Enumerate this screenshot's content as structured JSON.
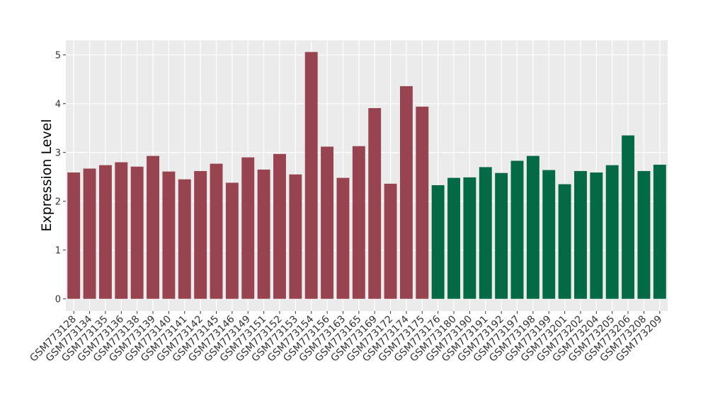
{
  "chart_data": {
    "type": "bar",
    "y_label": "Expression Level",
    "categories": [
      "GSM773128",
      "GSM773134",
      "GSM773135",
      "GSM773136",
      "GSM773138",
      "GSM773139",
      "GSM773140",
      "GSM773141",
      "GSM773142",
      "GSM773145",
      "GSM773146",
      "GSM773149",
      "GSM773151",
      "GSM773152",
      "GSM773153",
      "GSM773154",
      "GSM773156",
      "GSM773163",
      "GSM773165",
      "GSM773169",
      "GSM773172",
      "GSM773174",
      "GSM773175",
      "GSM773176",
      "GSM773180",
      "GSM773190",
      "GSM773191",
      "GSM773192",
      "GSM773197",
      "GSM773198",
      "GSM773199",
      "GSM773201",
      "GSM773202",
      "GSM773204",
      "GSM773205",
      "GSM773206",
      "GSM773208",
      "GSM773209"
    ],
    "values": [
      2.59,
      2.67,
      2.74,
      2.8,
      2.71,
      2.93,
      2.61,
      2.45,
      2.62,
      2.77,
      2.38,
      2.9,
      2.65,
      2.97,
      2.55,
      5.06,
      3.12,
      2.48,
      3.13,
      3.91,
      2.36,
      4.36,
      3.94,
      2.33,
      2.48,
      2.49,
      2.7,
      2.58,
      2.83,
      2.93,
      2.64,
      2.35,
      2.62,
      2.59,
      2.74,
      3.35,
      2.62,
      2.75
    ],
    "colors": [
      "#984450",
      "#984450",
      "#984450",
      "#984450",
      "#984450",
      "#984450",
      "#984450",
      "#984450",
      "#984450",
      "#984450",
      "#984450",
      "#984450",
      "#984450",
      "#984450",
      "#984450",
      "#984450",
      "#984450",
      "#984450",
      "#984450",
      "#984450",
      "#984450",
      "#984450",
      "#984450",
      "#046a45",
      "#046a45",
      "#046a45",
      "#046a45",
      "#046a45",
      "#046a45",
      "#046a45",
      "#046a45",
      "#046a45",
      "#046a45",
      "#046a45",
      "#046a45",
      "#046a45",
      "#046a45",
      "#046a45"
    ],
    "ylim": [
      -0.25,
      5.3
    ],
    "yticks": [
      0,
      1,
      2,
      3,
      4,
      5
    ],
    "grid": true
  }
}
